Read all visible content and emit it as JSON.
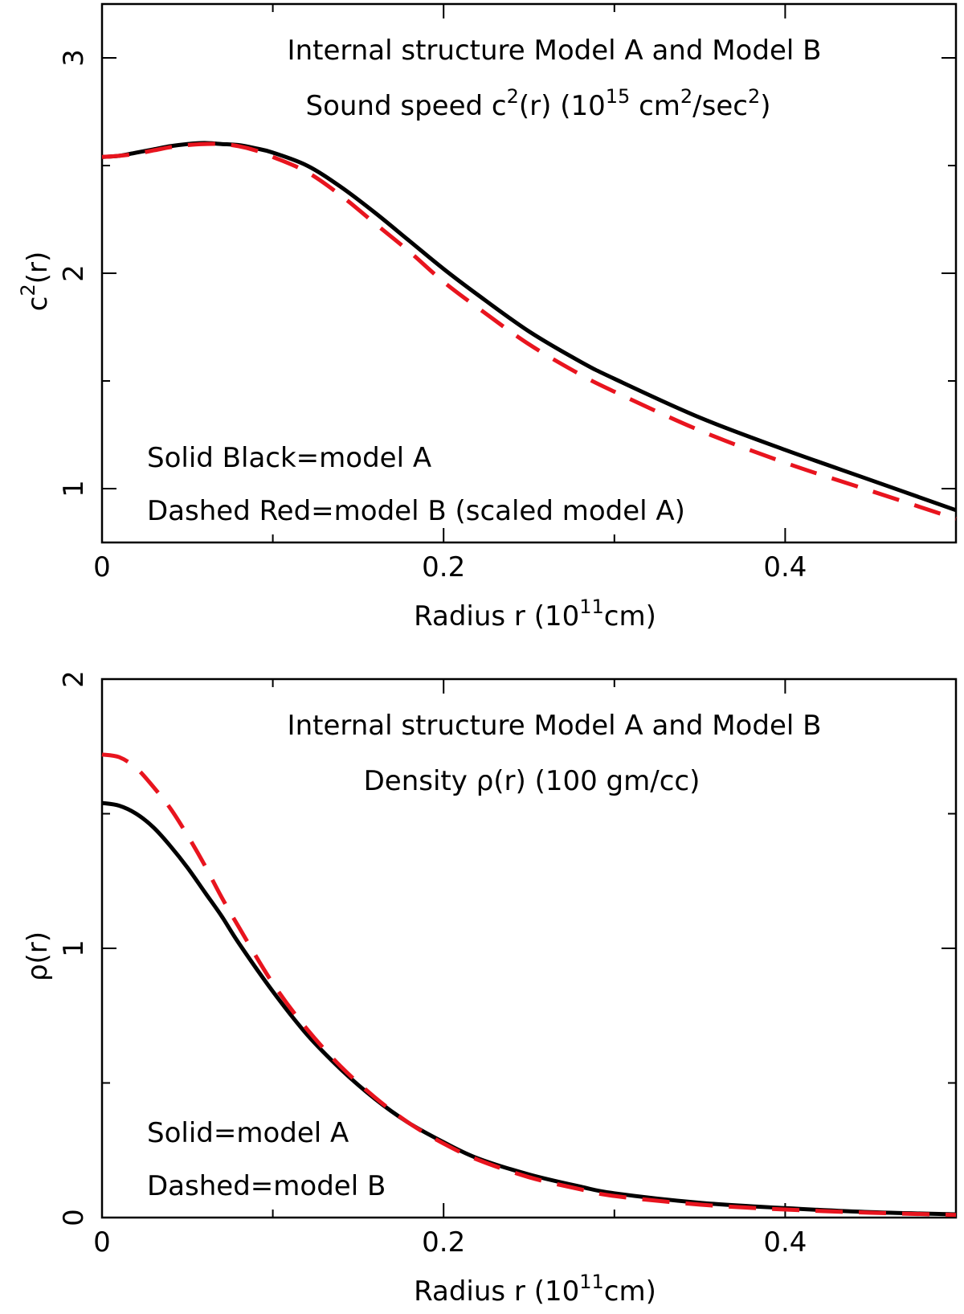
{
  "colors": {
    "model_a": "#000000",
    "model_b": "#e8141e"
  },
  "chart_data": [
    {
      "type": "line",
      "title": "Internal structure Model A and Model B",
      "subtitle_parts": {
        "prefix": "Sound speed c",
        "exp1": "2",
        "mid1": "(r) (10",
        "exp2": "15",
        "mid2": " cm",
        "exp3": "2",
        "mid3": "/sec",
        "exp4": "2",
        "suffix": ")"
      },
      "xlabel_parts": {
        "prefix": "Radius r (10",
        "exp": "11",
        "suffix": "cm)"
      },
      "ylabel_parts": {
        "prefix": "c",
        "exp": "2",
        "suffix": "(r)"
      },
      "xlim": [
        0,
        0.5
      ],
      "ylim": [
        0.75,
        3.25
      ],
      "xticks": [
        0,
        0.2,
        0.4
      ],
      "xtick_labels": [
        "0",
        "0.2",
        "0.4"
      ],
      "xminor": [
        0.1,
        0.3
      ],
      "yticks": [
        1,
        2,
        3
      ],
      "ytick_labels": [
        "1",
        "2",
        "3"
      ],
      "yminor": [
        1.5,
        2.5
      ],
      "annotations": [
        "Solid Black=model A",
        "Dashed Red=model B (scaled model A)"
      ],
      "series": [
        {
          "style": "solid",
          "x": [
            0,
            0.01,
            0.02,
            0.03,
            0.04,
            0.05,
            0.06,
            0.07,
            0.08,
            0.09,
            0.1,
            0.12,
            0.14,
            0.16,
            0.18,
            0.2,
            0.22,
            0.25,
            0.28,
            0.3,
            0.35,
            0.4,
            0.45,
            0.5
          ],
          "y": [
            2.54,
            2.545,
            2.56,
            2.575,
            2.59,
            2.6,
            2.605,
            2.6,
            2.595,
            2.58,
            2.56,
            2.5,
            2.4,
            2.28,
            2.15,
            2.02,
            1.9,
            1.73,
            1.59,
            1.51,
            1.33,
            1.18,
            1.04,
            0.9
          ]
        },
        {
          "style": "dashed",
          "x": [
            0,
            0.01,
            0.02,
            0.03,
            0.04,
            0.05,
            0.06,
            0.07,
            0.08,
            0.09,
            0.1,
            0.12,
            0.14,
            0.16,
            0.18,
            0.2,
            0.22,
            0.25,
            0.28,
            0.3,
            0.35,
            0.4,
            0.45,
            0.5
          ],
          "y": [
            2.54,
            2.545,
            2.555,
            2.57,
            2.585,
            2.595,
            2.6,
            2.6,
            2.59,
            2.57,
            2.54,
            2.47,
            2.36,
            2.23,
            2.1,
            1.96,
            1.84,
            1.67,
            1.53,
            1.45,
            1.27,
            1.12,
            0.99,
            0.86
          ]
        }
      ]
    },
    {
      "type": "line",
      "title": "Internal structure Model A and Model B",
      "subtitle": "Density ρ(r) (100 gm/cc)",
      "xlabel_parts": {
        "prefix": "Radius r (10",
        "exp": "11",
        "suffix": "cm)"
      },
      "ylabel": "ρ(r)",
      "xlim": [
        0,
        0.5
      ],
      "ylim": [
        0,
        2
      ],
      "xticks": [
        0,
        0.2,
        0.4
      ],
      "xtick_labels": [
        "0",
        "0.2",
        "0.4"
      ],
      "xminor": [
        0.1,
        0.3
      ],
      "yticks": [
        0,
        1,
        2
      ],
      "ytick_labels": [
        "0",
        "1",
        "2"
      ],
      "yminor": [
        0.5,
        1.5
      ],
      "annotations": [
        "Solid=model A",
        "Dashed=model B"
      ],
      "series": [
        {
          "style": "solid",
          "x": [
            0,
            0.01,
            0.02,
            0.03,
            0.04,
            0.05,
            0.06,
            0.07,
            0.08,
            0.1,
            0.12,
            0.14,
            0.16,
            0.18,
            0.2,
            0.22,
            0.25,
            0.28,
            0.3,
            0.35,
            0.4,
            0.45,
            0.5
          ],
          "y": [
            1.54,
            1.53,
            1.5,
            1.45,
            1.38,
            1.3,
            1.21,
            1.12,
            1.02,
            0.84,
            0.68,
            0.55,
            0.44,
            0.35,
            0.28,
            0.22,
            0.16,
            0.115,
            0.09,
            0.055,
            0.035,
            0.02,
            0.012
          ]
        },
        {
          "style": "dashed",
          "x": [
            0,
            0.01,
            0.02,
            0.03,
            0.04,
            0.05,
            0.06,
            0.07,
            0.08,
            0.1,
            0.12,
            0.14,
            0.16,
            0.18,
            0.2,
            0.22,
            0.25,
            0.28,
            0.3,
            0.35,
            0.4,
            0.45,
            0.5
          ],
          "y": [
            1.72,
            1.71,
            1.67,
            1.6,
            1.52,
            1.42,
            1.31,
            1.19,
            1.08,
            0.87,
            0.7,
            0.56,
            0.445,
            0.35,
            0.275,
            0.215,
            0.15,
            0.105,
            0.08,
            0.048,
            0.03,
            0.018,
            0.01
          ]
        }
      ]
    }
  ]
}
